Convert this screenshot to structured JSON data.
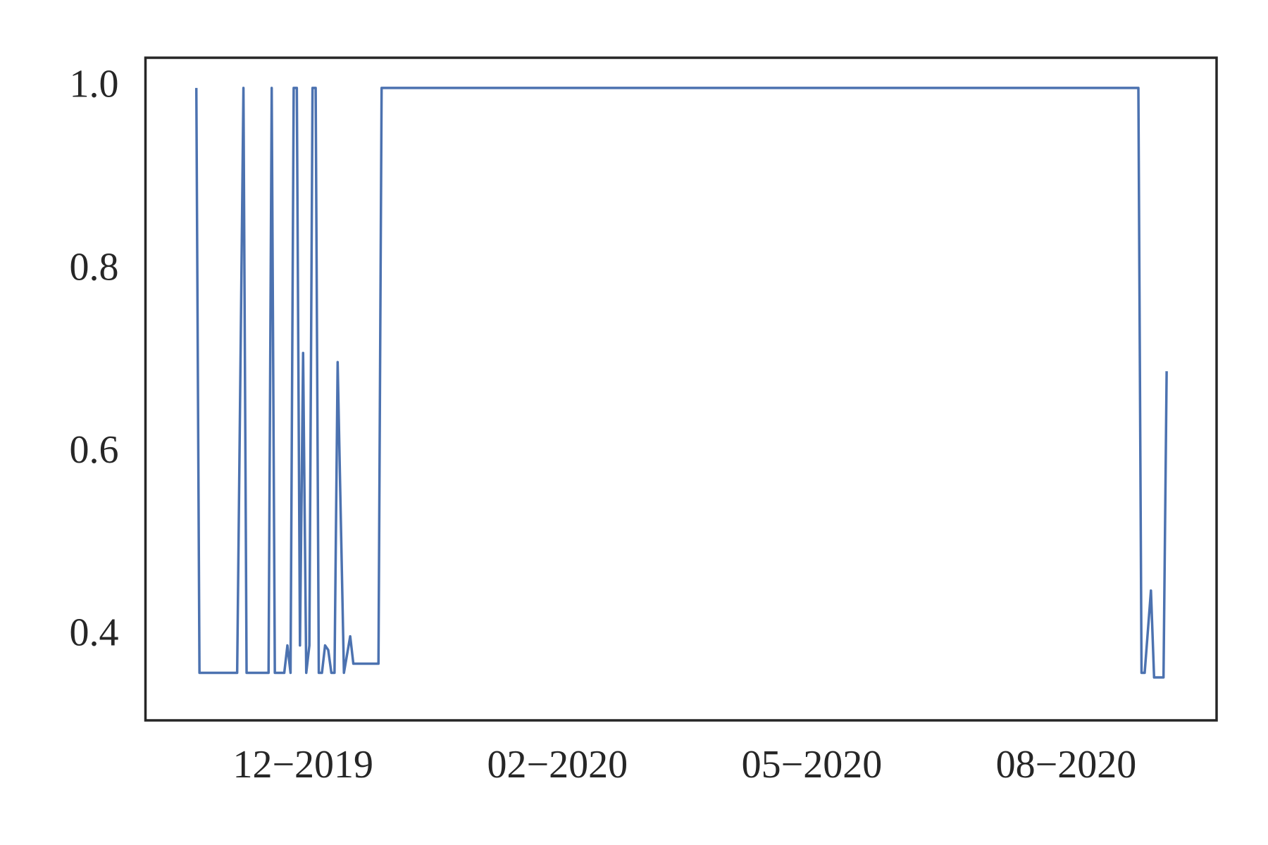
{
  "chart_data": {
    "type": "line",
    "x": [
      18206,
      18207,
      18219,
      18221,
      18222,
      18229,
      18230,
      18231,
      18234,
      18235,
      18236,
      18237,
      18238,
      18239,
      18240,
      18241,
      18242,
      18243,
      18244,
      18245,
      18246,
      18247,
      18248,
      18249,
      18250,
      18251,
      18253,
      18255,
      18256,
      18264,
      18265,
      18506,
      18507,
      18508,
      18510,
      18511,
      18514,
      18515
    ],
    "series": [
      {
        "color": "#4c72b0",
        "values": [
          1.0,
          0.36,
          0.36,
          1.0,
          0.36,
          0.36,
          1.0,
          0.36,
          0.36,
          0.39,
          0.36,
          1.0,
          1.0,
          0.39,
          0.71,
          0.36,
          0.39,
          1.0,
          1.0,
          0.36,
          0.36,
          0.39,
          0.385,
          0.36,
          0.36,
          0.7,
          0.36,
          0.4,
          0.37,
          0.37,
          1.0,
          1.0,
          0.36,
          0.36,
          0.45,
          0.355,
          0.355,
          0.69
        ]
      }
    ],
    "xlim": [
      18189.8,
      18530.9
    ],
    "xticks": [
      {
        "value": 18240,
        "label": "12−2019"
      },
      {
        "value": 18321,
        "label": "02−2020"
      },
      {
        "value": 18402,
        "label": "05−2020"
      },
      {
        "value": 18483,
        "label": "08−2020"
      }
    ],
    "ylim": [
      0.308,
      1.033
    ],
    "yticks": [
      0.4,
      0.6,
      0.8,
      {
        "value": 1.0,
        "label": "1.0"
      }
    ],
    "grid": false
  }
}
